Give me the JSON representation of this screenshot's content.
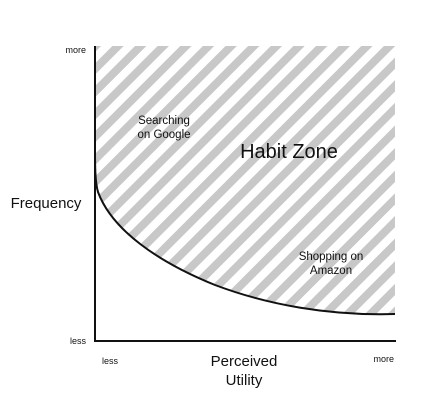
{
  "diagram": {
    "y_axis": {
      "title": "Frequency",
      "top_label": "more",
      "bottom_label": "less"
    },
    "x_axis": {
      "title_line1": "Perceived",
      "title_line2": "Utility",
      "left_label": "less",
      "right_label": "more"
    },
    "zone_label": "Habit Zone",
    "annotations": {
      "google_line1": "Searching",
      "google_line2": "on Google",
      "amazon_line1": "Shopping on",
      "amazon_line2": "Amazon"
    },
    "colors": {
      "hatch": "#c8c8c8",
      "background": "#ffffff",
      "ink": "#111111"
    }
  }
}
